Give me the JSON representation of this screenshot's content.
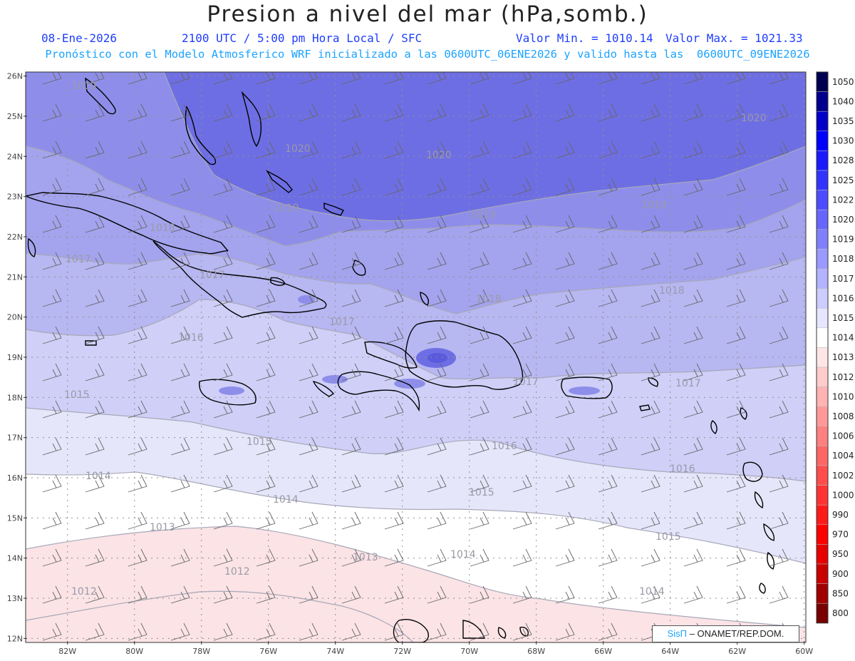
{
  "header": {
    "title": "Presion a nivel del mar (hPa,somb.)",
    "date": "08-Ene-2026",
    "time": "2100 UTC / 5:00 pm Hora Local / SFC",
    "min_label": "Valor Min. = 1010.14",
    "max_label": "Valor Max. = 1021.33",
    "model_line": "Pronóstico con el Modelo Atmosferico WRF inicializado a las 0600UTC_06ENE2026 y valido hasta las  0600UTC_09ENE2026"
  },
  "axes": {
    "lat_labels": [
      "26N",
      "25N",
      "24N",
      "23N",
      "22N",
      "21N",
      "20N",
      "19N",
      "18N",
      "17N",
      "16N",
      "15N",
      "14N",
      "13N",
      "12N"
    ],
    "lon_labels": [
      "82W",
      "80W",
      "78W",
      "76W",
      "74W",
      "72W",
      "70W",
      "68W",
      "66W",
      "64W",
      "62W",
      "60W"
    ]
  },
  "contour_labels": [
    {
      "text": "1019"
    },
    {
      "text": "1020"
    },
    {
      "text": "1020"
    },
    {
      "text": "1020"
    },
    {
      "text": "1019"
    },
    {
      "text": "1019"
    },
    {
      "text": "1019"
    },
    {
      "text": "1018"
    },
    {
      "text": "1017"
    },
    {
      "text": "1017"
    },
    {
      "text": "1018"
    },
    {
      "text": "1018"
    },
    {
      "text": "1017"
    },
    {
      "text": "1016"
    },
    {
      "text": "1017"
    },
    {
      "text": "1017"
    },
    {
      "text": "1015"
    },
    {
      "text": "1015"
    },
    {
      "text": "1016"
    },
    {
      "text": "1016"
    },
    {
      "text": "1014"
    },
    {
      "text": "1014"
    },
    {
      "text": "1015"
    },
    {
      "text": "1013"
    },
    {
      "text": "1013"
    },
    {
      "text": "1014"
    },
    {
      "text": "1015"
    },
    {
      "text": "1012"
    },
    {
      "text": "1012"
    },
    {
      "text": "1014"
    }
  ],
  "colorbar": {
    "levels": [
      "1050",
      "1040",
      "1035",
      "1030",
      "1028",
      "1025",
      "1022",
      "1020",
      "1019",
      "1018",
      "1017",
      "1016",
      "1015",
      "1014",
      "1013",
      "1012",
      "1010",
      "1008",
      "1006",
      "1004",
      "1002",
      "1000",
      "990",
      "970",
      "950",
      "900",
      "850",
      "800"
    ],
    "colors": [
      "#000050",
      "#00008c",
      "#0000c8",
      "#0000ff",
      "#1a1aff",
      "#3333ff",
      "#4d4dff",
      "#6666ff",
      "#8080ff",
      "#9999ff",
      "#b3b3ff",
      "#ccccff",
      "#e6e6ff",
      "#ffffff",
      "#ffe6e6",
      "#ffcccc",
      "#ffb3b3",
      "#ff9999",
      "#ff8080",
      "#ff6666",
      "#ff4d4d",
      "#ff3333",
      "#ff1a1a",
      "#ff0000",
      "#e60000",
      "#c80000",
      "#a00000",
      "#780000"
    ]
  },
  "credit": {
    "brand": "SisΠ",
    "text": " – ONAMET/REP.DOM."
  }
}
